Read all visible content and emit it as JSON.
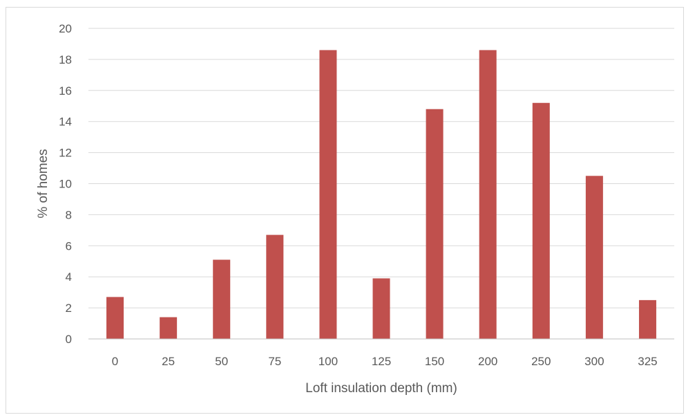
{
  "chart_data": {
    "type": "bar",
    "title": "",
    "xlabel": "Loft insulation depth (mm)",
    "ylabel": "% of homes",
    "categories": [
      "0",
      "25",
      "50",
      "75",
      "100",
      "125",
      "150",
      "200",
      "250",
      "300",
      "325"
    ],
    "values": [
      2.7,
      1.4,
      5.1,
      6.7,
      18.6,
      3.9,
      14.8,
      18.6,
      15.2,
      10.5,
      2.5
    ],
    "ylim": [
      0,
      20
    ],
    "yticks": [
      "0",
      "2",
      "4",
      "6",
      "8",
      "10",
      "12",
      "14",
      "16",
      "18",
      "20"
    ],
    "grid": "horizontal",
    "legend": "none",
    "colors": {
      "bar": "#c0504d",
      "grid": "#d9d9d9",
      "axis": "#bfbfbf",
      "text": "#595959"
    }
  }
}
